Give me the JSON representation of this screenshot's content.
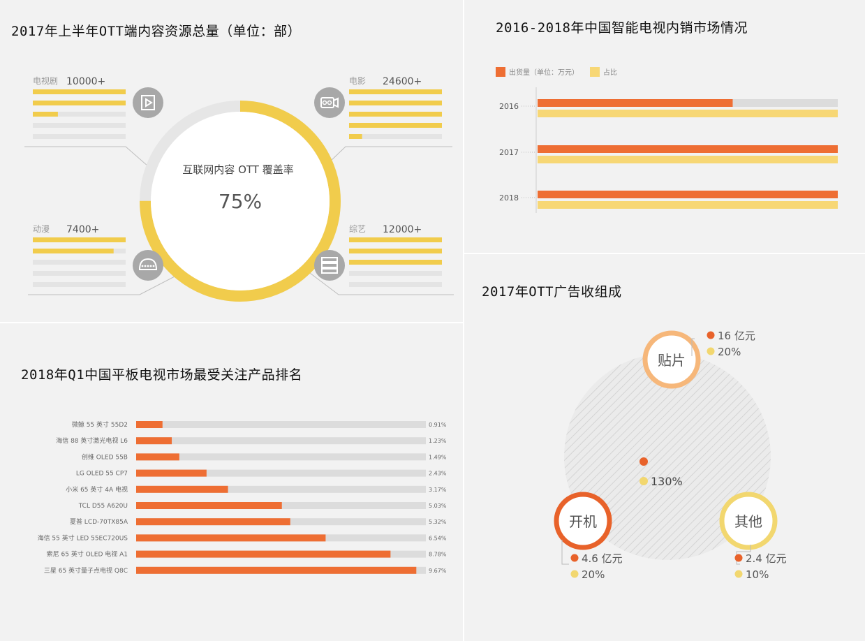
{
  "panel1": {
    "title": "2017年上半年OTT端内容资源总量（单位：部）",
    "center_label": "互联网内容 OTT 覆盖率",
    "center_value": "75%",
    "coverage_fraction": 0.75,
    "categories": [
      {
        "name": "电视剧",
        "value": "10000+",
        "bars": [
          1,
          1,
          0.27,
          0,
          0
        ],
        "icon": "play-icon"
      },
      {
        "name": "电影",
        "value": "24600+",
        "bars": [
          1,
          1,
          1,
          1,
          0.14
        ],
        "icon": "film-camera-icon"
      },
      {
        "name": "动漫",
        "value": "7400+",
        "bars": [
          1,
          0.87,
          0,
          0,
          0
        ],
        "icon": "cartoon-icon"
      },
      {
        "name": "综艺",
        "value": "12000+",
        "bars": [
          1,
          1,
          1,
          0,
          0
        ],
        "icon": "tv-show-icon"
      }
    ]
  },
  "panel2": {
    "title": "2016-2018年中国智能电视内销市场情况",
    "legend": [
      "出货量（单位：万元）",
      "占比"
    ],
    "colors": {
      "shipments": "#ee6e33",
      "share": "#f7d775",
      "track": "#dcdcdc"
    },
    "chart_data": {
      "type": "bar",
      "categories": [
        "2016",
        "2017",
        "2018"
      ],
      "series": [
        {
          "name": "出货量（单位：万元）",
          "values": [
            0.65,
            1.0,
            1.0
          ]
        },
        {
          "name": "占比",
          "values": [
            1.0,
            1.0,
            1.0
          ]
        }
      ]
    }
  },
  "panel3": {
    "title": "2018年Q1中国平板电视市场最受关注产品排名",
    "chart_data": {
      "type": "bar",
      "categories": [
        "微鲸 55 英寸 55D2",
        "海信 88 英寸激光电视 L6",
        "创维 OLED 55B",
        "LG OLED 55 CP7",
        "小米 65 英寸 4A 电视",
        "TCL D55 A620U",
        "夏普 LCD-70TX85A",
        "海信 55 英寸 LED 55EC720US",
        "索尼 65 英寸 OLED 电视 A1",
        "三星 65 英寸量子点电视 Q8C"
      ],
      "values": [
        0.91,
        1.23,
        1.49,
        2.43,
        3.17,
        5.03,
        5.32,
        6.54,
        8.78,
        9.67
      ],
      "labels": [
        "0.91%",
        "1.23%",
        "1.49%",
        "2.43%",
        "3.17%",
        "5.03%",
        "5.32%",
        "6.54%",
        "8.78%",
        "9.67%"
      ],
      "xlim": [
        0,
        10
      ]
    }
  },
  "panel4": {
    "title": "2017年OTT广告收组成",
    "center_value": "130%",
    "items": [
      {
        "name": "贴片",
        "amount": "16 亿元",
        "share": "20%",
        "color": "#f6b77a"
      },
      {
        "name": "开机",
        "amount": "4.6 亿元",
        "share": "20%",
        "color": "#e8622a"
      },
      {
        "name": "其他",
        "amount": "2.4 亿元",
        "share": "10%",
        "color": "#f2d76f"
      }
    ]
  }
}
